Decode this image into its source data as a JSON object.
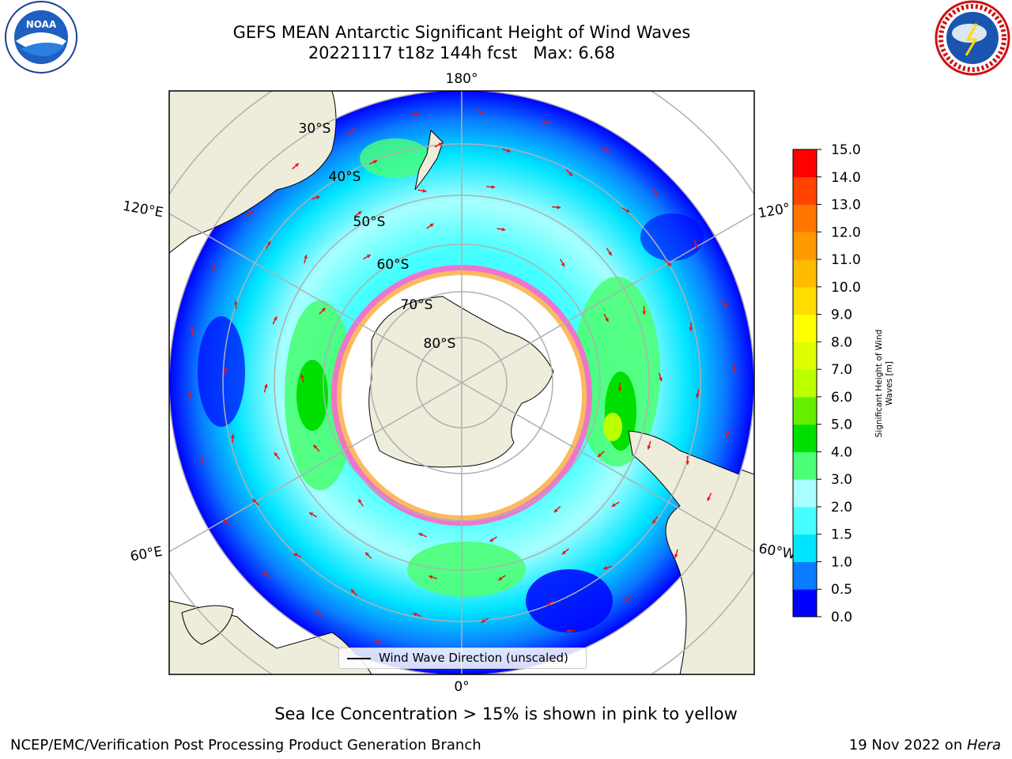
{
  "header": {
    "title_line1": "GEFS MEAN Antarctic Significant Height of Wind Waves",
    "title_line2": "20221117 t18z 144h fcst   Max: 6.68"
  },
  "logos": {
    "left": "noaa-logo",
    "right": "national-weather-service-logo"
  },
  "map": {
    "projection": "south-polar-stereographic",
    "longitude_labels": {
      "top": "180°",
      "bottom": "0°",
      "upper_left": "120°E",
      "upper_right": "120°",
      "lower_left": "60°E",
      "lower_right": "60°W"
    },
    "latitude_labels": [
      "30°S",
      "40°S",
      "50°S",
      "60°S",
      "70°S",
      "80°S"
    ],
    "legend_label": "Wind Wave Direction (unscaled)",
    "colors": {
      "land": "#eeecdb",
      "ice": "#ffffff",
      "arrows": "#ee1111",
      "grid": "#b0b0b0"
    }
  },
  "colorbar": {
    "label_line1": "Significant Height of Wind",
    "label_line2": "Waves [m]",
    "ticks": [
      "15.0",
      "14.0",
      "13.0",
      "12.0",
      "11.0",
      "10.0",
      "9.0",
      "8.0",
      "7.0",
      "6.0",
      "5.0",
      "4.0",
      "3.0",
      "2.0",
      "1.5",
      "1.0",
      "0.5",
      "0.0"
    ],
    "colors_bottom_to_top": [
      "#0000ff",
      "#0a7cff",
      "#00e5ff",
      "#45ffff",
      "#a8ffff",
      "#4dff77",
      "#00e000",
      "#66ee00",
      "#bbff00",
      "#ddff00",
      "#ffff00",
      "#ffdd00",
      "#ffbb00",
      "#ff9900",
      "#ff7700",
      "#ff4400",
      "#ff0000"
    ]
  },
  "caption": "Sea Ice Concentration > 15% is shown in pink to yellow",
  "footer": {
    "left": "NCEP/EMC/Verification Post Processing Product Generation Branch",
    "right_prefix": "19 Nov 2022 on ",
    "right_italic": "Hera"
  }
}
